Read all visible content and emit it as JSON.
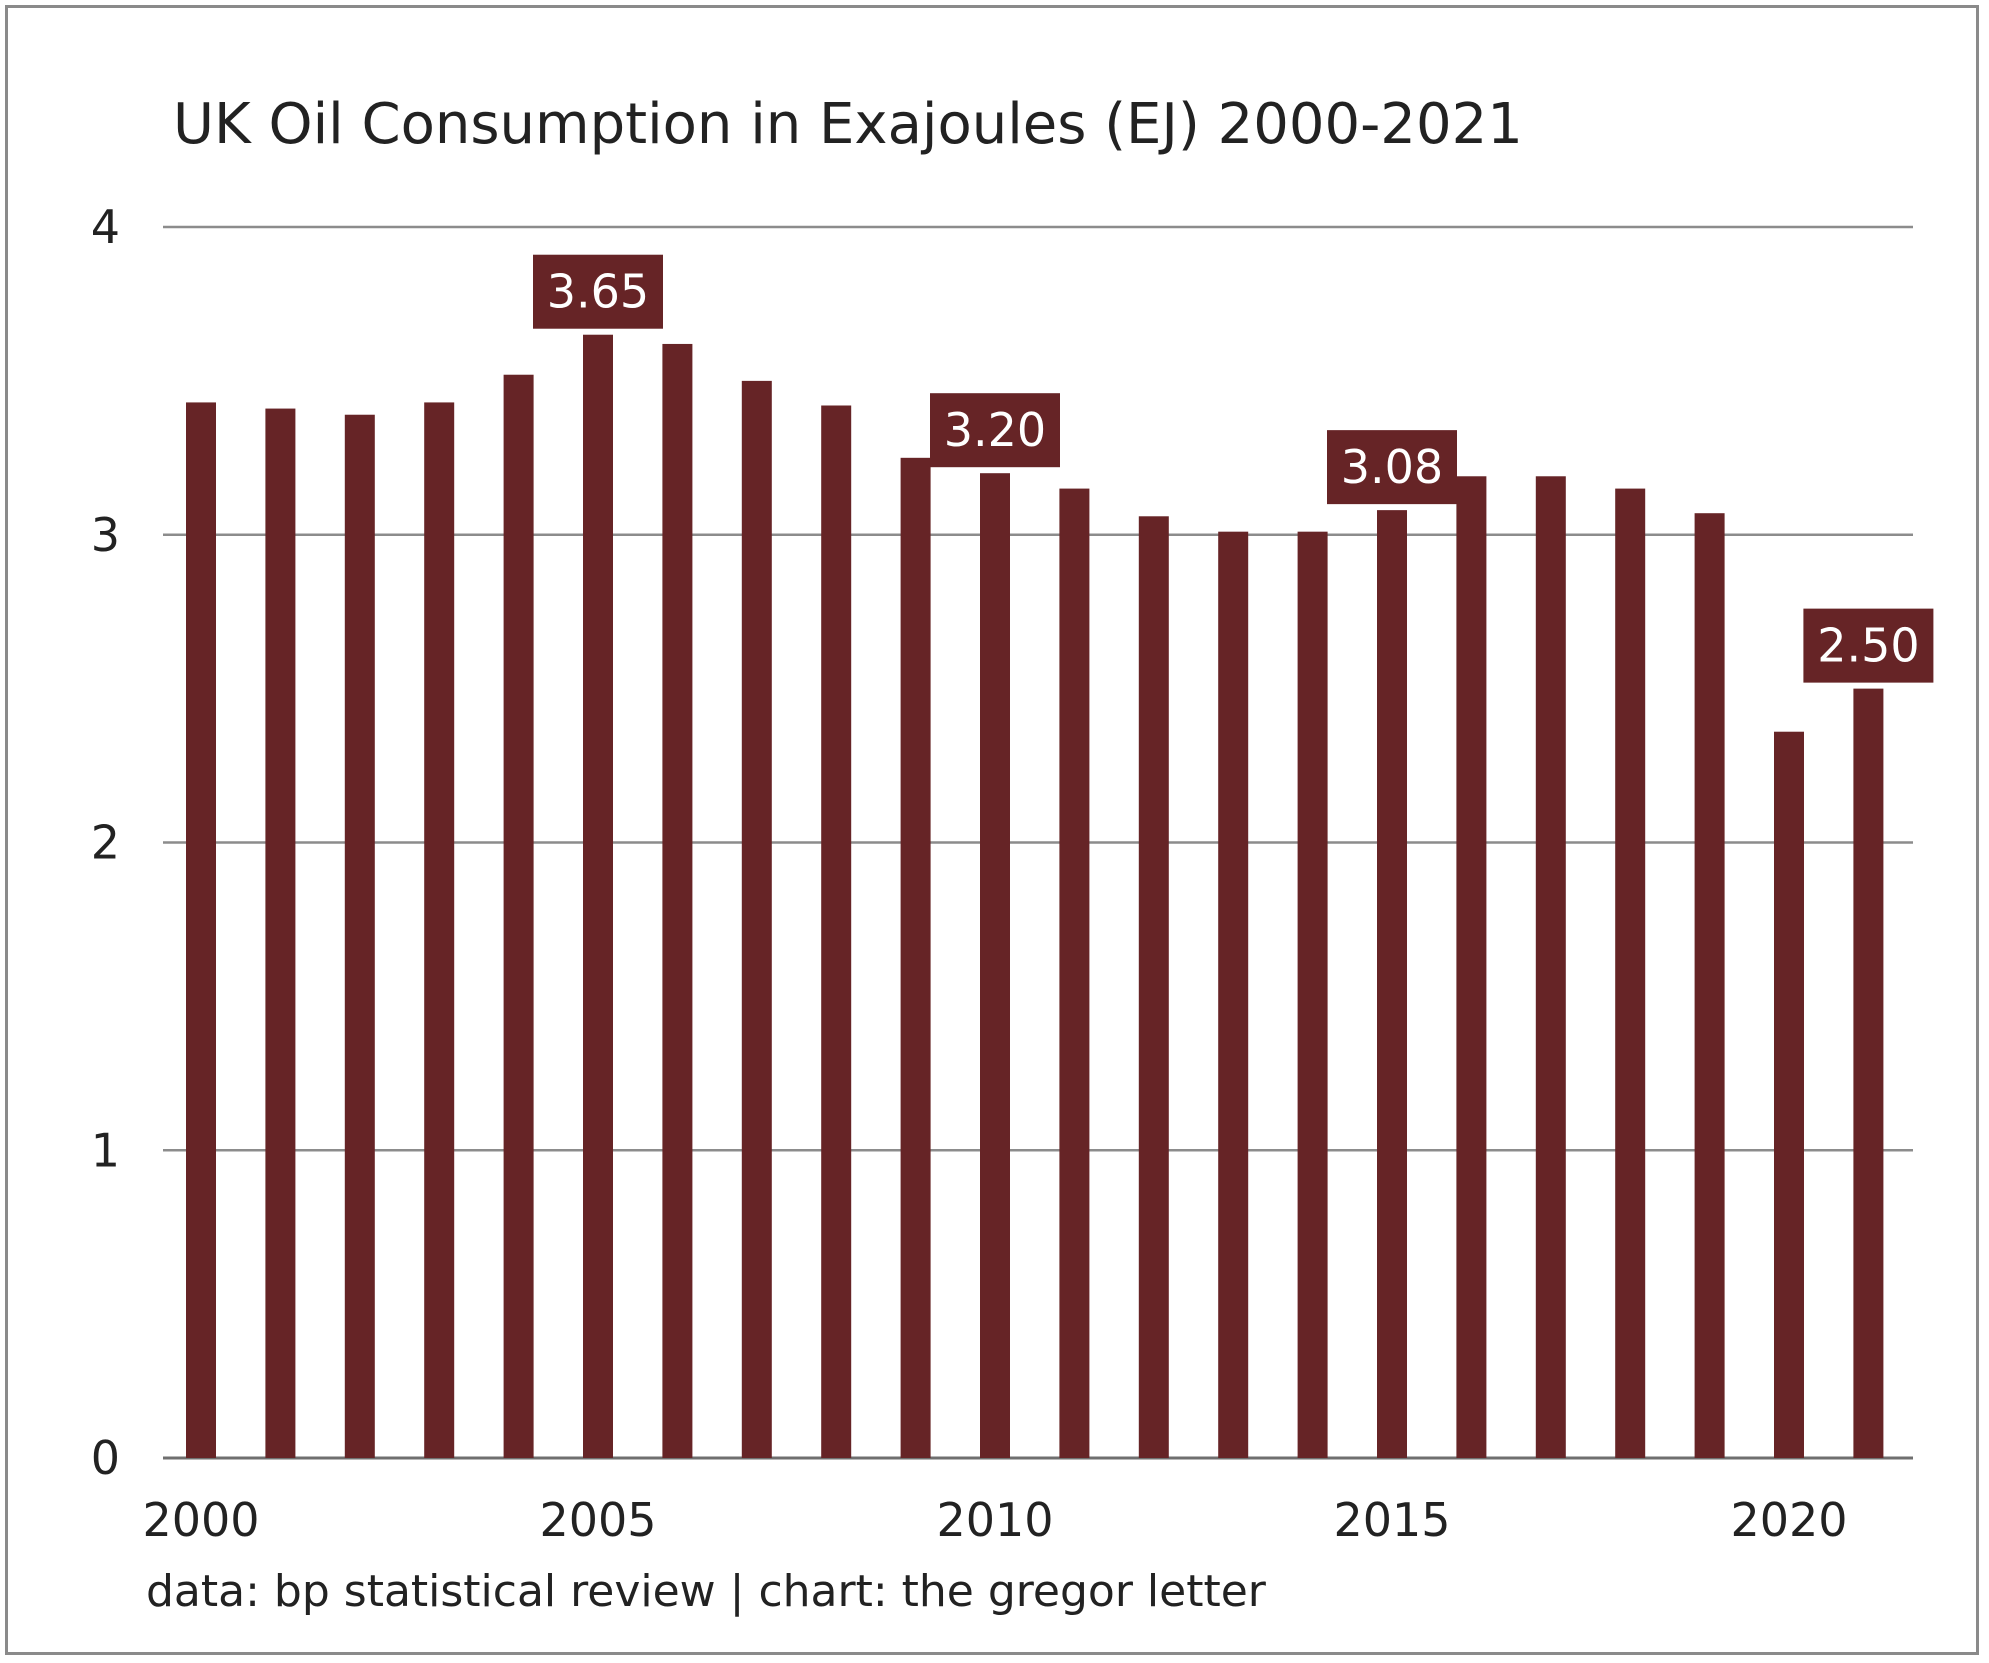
{
  "chart_data": {
    "type": "bar",
    "title": "UK Oil Consumption in Exajoules (EJ) 2000-2021",
    "xlabel": "",
    "ylabel": "",
    "x": [
      2000,
      2001,
      2002,
      2003,
      2004,
      2005,
      2006,
      2007,
      2008,
      2009,
      2010,
      2011,
      2012,
      2013,
      2014,
      2015,
      2016,
      2017,
      2018,
      2019,
      2020,
      2021
    ],
    "values": [
      3.43,
      3.41,
      3.39,
      3.43,
      3.52,
      3.65,
      3.62,
      3.5,
      3.42,
      3.25,
      3.2,
      3.15,
      3.06,
      3.01,
      3.01,
      3.08,
      3.19,
      3.19,
      3.15,
      3.07,
      2.36,
      2.5
    ],
    "ylim": [
      0,
      4
    ],
    "y_ticks": [
      0,
      1,
      2,
      3,
      4
    ],
    "x_ticks": [
      2000,
      2005,
      2010,
      2015,
      2020
    ],
    "grid": true,
    "bar_color": "#662426",
    "callouts": [
      {
        "x": 2005,
        "label": "3.65"
      },
      {
        "x": 2010,
        "label": "3.20"
      },
      {
        "x": 2015,
        "label": "3.08"
      },
      {
        "x": 2021,
        "label": "2.50"
      }
    ],
    "source": "data: bp statistical review | chart: the gregor letter"
  }
}
